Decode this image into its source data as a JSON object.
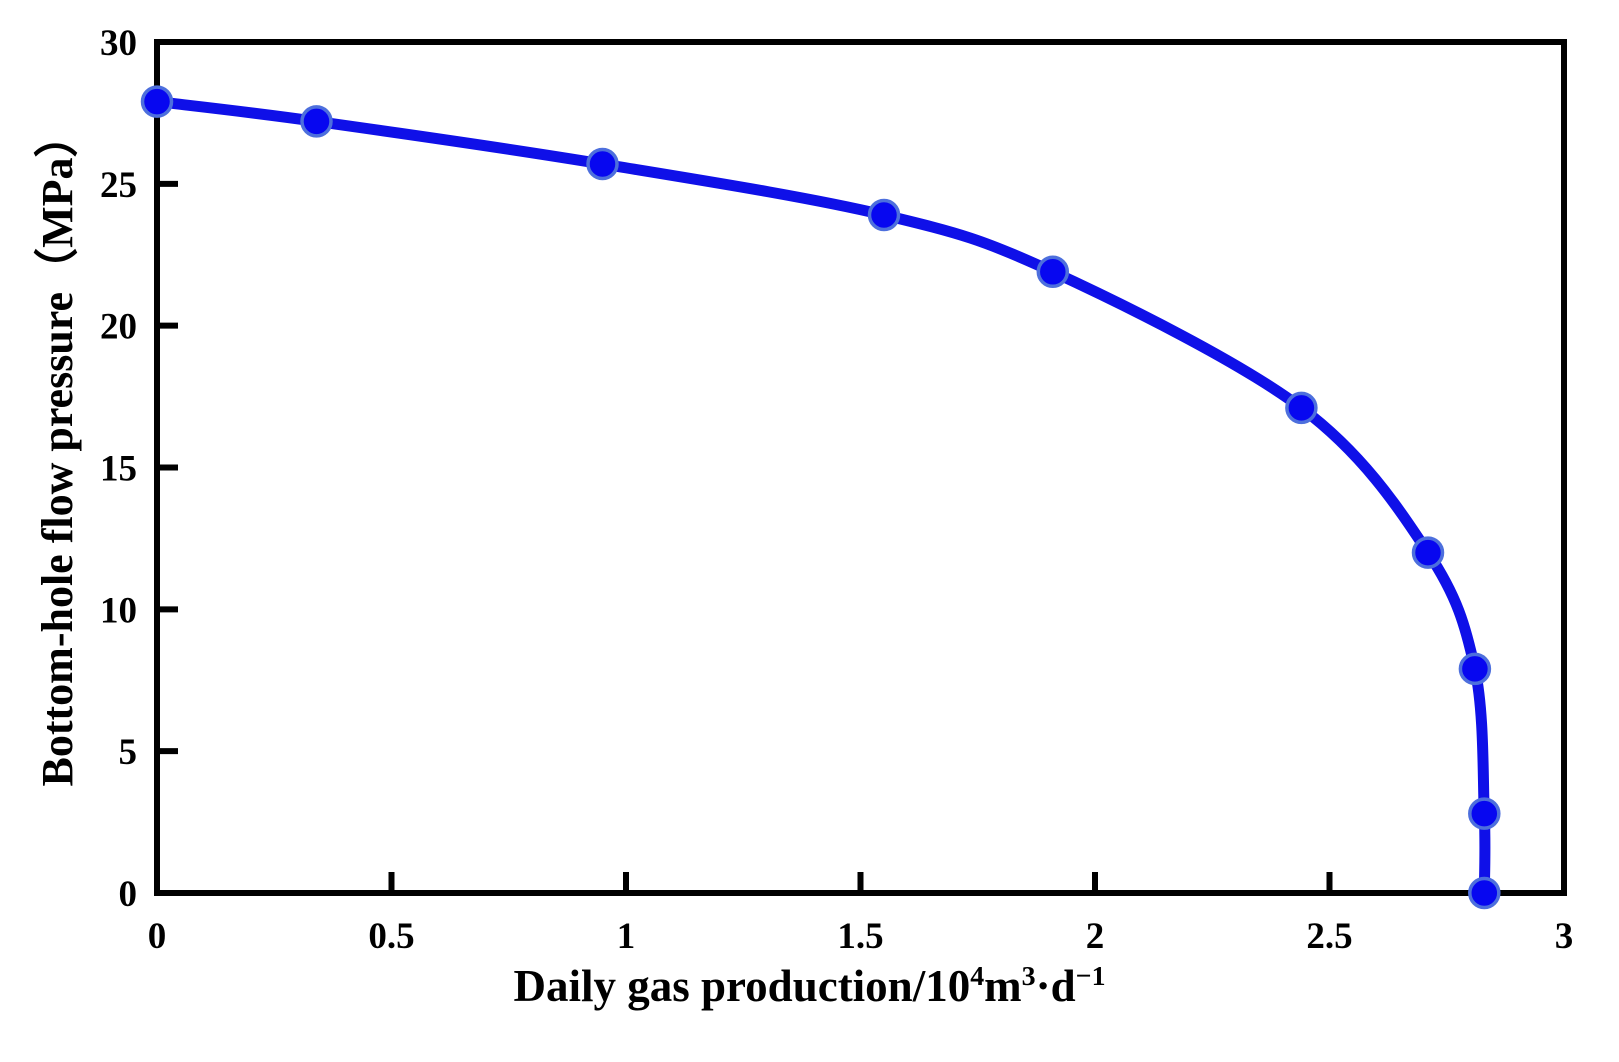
{
  "figure": {
    "background": "#ffffff"
  },
  "chart_data": {
    "type": "line",
    "title": "",
    "xlabel": "Daily gas production/10⁴m³·d⁻¹",
    "xlabel_parts": [
      {
        "text": "Daily gas production/10"
      },
      {
        "text": "4",
        "sup": true
      },
      {
        "text": "m"
      },
      {
        "text": "3",
        "sup": true
      },
      {
        "text": "·d"
      },
      {
        "text": "−1",
        "sup": true
      }
    ],
    "ylabel": "Bottom-hole flow pressure（MPa）",
    "xlim": [
      0,
      3
    ],
    "ylim": [
      0,
      30
    ],
    "x_ticks": [
      0,
      0.5,
      1,
      1.5,
      2,
      2.5,
      3
    ],
    "x_tick_labels": [
      "0",
      "0.5",
      "1",
      "1.5",
      "2",
      "2.5",
      "3"
    ],
    "y_ticks": [
      0,
      5,
      10,
      15,
      20,
      25,
      30
    ],
    "y_tick_labels": [
      "0",
      "5",
      "10",
      "15",
      "20",
      "25",
      "30"
    ],
    "grid": false,
    "legend": "none",
    "axis_color": "#000000",
    "series": [
      {
        "name": "bottom-hole flow pressure curve",
        "points": [
          [
            0,
            27.9
          ],
          [
            0.34,
            27.2
          ],
          [
            0.95,
            25.7
          ],
          [
            1.55,
            23.9
          ],
          [
            1.91,
            21.9
          ],
          [
            2.44,
            17.1
          ],
          [
            2.71,
            12.0
          ],
          [
            2.81,
            7.9
          ],
          [
            2.83,
            2.8
          ],
          [
            2.83,
            0.0
          ]
        ],
        "line_color": "#0f10e8",
        "marker_fill": "#0707f0",
        "marker_stroke": "#4d6fdd"
      }
    ]
  }
}
